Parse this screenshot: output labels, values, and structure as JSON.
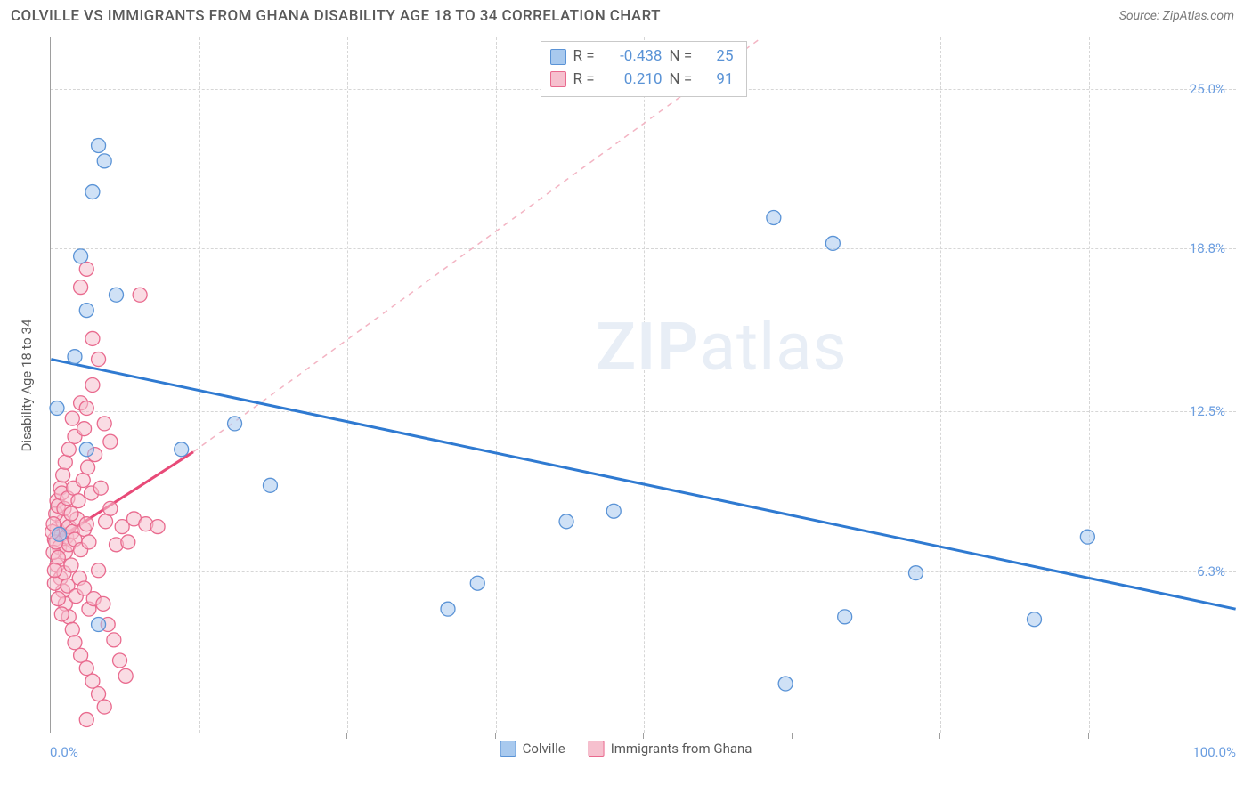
{
  "header": {
    "title": "COLVILLE VS IMMIGRANTS FROM GHANA DISABILITY AGE 18 TO 34 CORRELATION CHART",
    "source": "Source: ZipAtlas.com"
  },
  "axes": {
    "y_label": "Disability Age 18 to 34",
    "x_min": 0.0,
    "x_max": 100.0,
    "y_min": 0.0,
    "y_max": 27.0,
    "x_ticks": [
      12.5,
      25.0,
      37.5,
      50.0,
      62.5,
      75.0,
      87.5
    ],
    "y_ticks": [
      6.3,
      12.5,
      18.8,
      25.0
    ],
    "y_tick_labels": [
      "6.3%",
      "12.5%",
      "18.8%",
      "25.0%"
    ],
    "x_start_label": "0.0%",
    "x_end_label": "100.0%"
  },
  "colors": {
    "blue_fill": "#a8c9ee",
    "blue_stroke": "#5a93d6",
    "pink_fill": "#f6c0ce",
    "pink_stroke": "#e96a8e",
    "blue_line": "#2f7ad1",
    "pink_line": "#e84a78",
    "pink_dash": "#f3b4c3",
    "grid": "#d6d6d6",
    "axis": "#9e9e9e",
    "text": "#5a5a5a",
    "tick_text": "#6a9de0",
    "watermark": "#e8eef6"
  },
  "legend_stats": {
    "series": [
      {
        "swatch_fill": "#a8c9ee",
        "swatch_stroke": "#5a93d6",
        "r": "-0.438",
        "n": "25"
      },
      {
        "swatch_fill": "#f6c0ce",
        "swatch_stroke": "#e96a8e",
        "r": "0.210",
        "n": "91"
      }
    ]
  },
  "bottom_legend": {
    "items": [
      {
        "label": "Colville",
        "swatch_fill": "#a8c9ee",
        "swatch_stroke": "#5a93d6"
      },
      {
        "label": "Immigrants from Ghana",
        "swatch_fill": "#f6c0ce",
        "swatch_stroke": "#e96a8e"
      }
    ]
  },
  "watermark": {
    "zip": "ZIP",
    "atlas": "atlas"
  },
  "trend_lines": {
    "blue_solid": {
      "x1": 0,
      "y1": 14.5,
      "x2": 100,
      "y2": 4.8
    },
    "pink_solid": {
      "x1": 0.5,
      "y1": 7.5,
      "x2": 12.0,
      "y2": 10.9
    },
    "pink_dash": {
      "x1": 12.0,
      "y1": 10.9,
      "x2": 60.0,
      "y2": 27.0
    }
  },
  "points": {
    "blue": [
      {
        "x": 0.5,
        "y": 12.6
      },
      {
        "x": 3.0,
        "y": 11.0
      },
      {
        "x": 4.0,
        "y": 22.8
      },
      {
        "x": 4.5,
        "y": 22.2
      },
      {
        "x": 3.5,
        "y": 21.0
      },
      {
        "x": 2.5,
        "y": 18.5
      },
      {
        "x": 3.0,
        "y": 16.4
      },
      {
        "x": 5.5,
        "y": 17.0
      },
      {
        "x": 4.0,
        "y": 4.2
      },
      {
        "x": 0.7,
        "y": 7.7
      },
      {
        "x": 11.0,
        "y": 11.0
      },
      {
        "x": 15.5,
        "y": 12.0
      },
      {
        "x": 18.5,
        "y": 9.6
      },
      {
        "x": 33.5,
        "y": 4.8
      },
      {
        "x": 36.0,
        "y": 5.8
      },
      {
        "x": 43.5,
        "y": 8.2
      },
      {
        "x": 47.5,
        "y": 8.6
      },
      {
        "x": 61.0,
        "y": 20.0
      },
      {
        "x": 66.0,
        "y": 19.0
      },
      {
        "x": 62.0,
        "y": 1.9
      },
      {
        "x": 67.0,
        "y": 4.5
      },
      {
        "x": 73.0,
        "y": 6.2
      },
      {
        "x": 83.0,
        "y": 4.4
      },
      {
        "x": 87.5,
        "y": 7.6
      },
      {
        "x": 2.0,
        "y": 14.6
      }
    ],
    "pink": [
      {
        "x": 0.3,
        "y": 7.5
      },
      {
        "x": 0.5,
        "y": 7.9
      },
      {
        "x": 0.7,
        "y": 7.2
      },
      {
        "x": 0.9,
        "y": 7.7
      },
      {
        "x": 1.0,
        "y": 8.2
      },
      {
        "x": 1.2,
        "y": 7.0
      },
      {
        "x": 1.3,
        "y": 7.6
      },
      {
        "x": 1.5,
        "y": 8.0
      },
      {
        "x": 1.5,
        "y": 7.3
      },
      {
        "x": 1.8,
        "y": 7.8
      },
      {
        "x": 2.0,
        "y": 7.5
      },
      {
        "x": 2.2,
        "y": 8.3
      },
      {
        "x": 2.5,
        "y": 7.1
      },
      {
        "x": 2.8,
        "y": 7.9
      },
      {
        "x": 3.0,
        "y": 8.1
      },
      {
        "x": 3.2,
        "y": 7.4
      },
      {
        "x": 0.5,
        "y": 6.5
      },
      {
        "x": 0.8,
        "y": 6.0
      },
      {
        "x": 1.0,
        "y": 5.5
      },
      {
        "x": 1.2,
        "y": 5.0
      },
      {
        "x": 1.5,
        "y": 4.5
      },
      {
        "x": 1.8,
        "y": 4.0
      },
      {
        "x": 2.0,
        "y": 3.5
      },
      {
        "x": 2.5,
        "y": 3.0
      },
      {
        "x": 3.0,
        "y": 2.5
      },
      {
        "x": 3.5,
        "y": 2.0
      },
      {
        "x": 4.0,
        "y": 1.5
      },
      {
        "x": 4.5,
        "y": 1.0
      },
      {
        "x": 3.0,
        "y": 0.5
      },
      {
        "x": 0.5,
        "y": 9.0
      },
      {
        "x": 0.8,
        "y": 9.5
      },
      {
        "x": 1.0,
        "y": 10.0
      },
      {
        "x": 1.2,
        "y": 10.5
      },
      {
        "x": 1.5,
        "y": 11.0
      },
      {
        "x": 2.5,
        "y": 12.8
      },
      {
        "x": 3.0,
        "y": 12.6
      },
      {
        "x": 3.5,
        "y": 13.5
      },
      {
        "x": 4.0,
        "y": 14.5
      },
      {
        "x": 2.5,
        "y": 17.3
      },
      {
        "x": 3.0,
        "y": 18.0
      },
      {
        "x": 7.5,
        "y": 17.0
      },
      {
        "x": 0.4,
        "y": 8.5
      },
      {
        "x": 0.6,
        "y": 8.8
      },
      {
        "x": 0.9,
        "y": 9.3
      },
      {
        "x": 1.1,
        "y": 8.7
      },
      {
        "x": 1.4,
        "y": 9.1
      },
      {
        "x": 1.7,
        "y": 8.5
      },
      {
        "x": 1.9,
        "y": 9.5
      },
      {
        "x": 2.3,
        "y": 9.0
      },
      {
        "x": 2.7,
        "y": 9.8
      },
      {
        "x": 3.1,
        "y": 10.3
      },
      {
        "x": 3.4,
        "y": 9.3
      },
      {
        "x": 3.7,
        "y": 10.8
      },
      {
        "x": 4.2,
        "y": 9.5
      },
      {
        "x": 4.6,
        "y": 8.2
      },
      {
        "x": 5.0,
        "y": 8.7
      },
      {
        "x": 5.5,
        "y": 7.3
      },
      {
        "x": 6.0,
        "y": 8.0
      },
      {
        "x": 6.5,
        "y": 7.4
      },
      {
        "x": 7.0,
        "y": 8.3
      },
      {
        "x": 8.0,
        "y": 8.1
      },
      {
        "x": 9.0,
        "y": 8.0
      },
      {
        "x": 0.3,
        "y": 5.8
      },
      {
        "x": 0.6,
        "y": 5.2
      },
      {
        "x": 0.9,
        "y": 4.6
      },
      {
        "x": 1.1,
        "y": 6.2
      },
      {
        "x": 1.4,
        "y": 5.7
      },
      {
        "x": 1.7,
        "y": 6.5
      },
      {
        "x": 2.1,
        "y": 5.3
      },
      {
        "x": 2.4,
        "y": 6.0
      },
      {
        "x": 2.8,
        "y": 5.6
      },
      {
        "x": 3.2,
        "y": 4.8
      },
      {
        "x": 3.6,
        "y": 5.2
      },
      {
        "x": 4.0,
        "y": 6.3
      },
      {
        "x": 4.4,
        "y": 5.0
      },
      {
        "x": 4.8,
        "y": 4.2
      },
      {
        "x": 5.3,
        "y": 3.6
      },
      {
        "x": 5.8,
        "y": 2.8
      },
      {
        "x": 6.3,
        "y": 2.2
      },
      {
        "x": 3.5,
        "y": 15.3
      },
      {
        "x": 2.0,
        "y": 11.5
      },
      {
        "x": 2.8,
        "y": 11.8
      },
      {
        "x": 1.8,
        "y": 12.2
      },
      {
        "x": 4.5,
        "y": 12.0
      },
      {
        "x": 5.0,
        "y": 11.3
      },
      {
        "x": 0.2,
        "y": 7.0
      },
      {
        "x": 0.4,
        "y": 7.4
      },
      {
        "x": 0.6,
        "y": 6.8
      },
      {
        "x": 0.1,
        "y": 7.8
      },
      {
        "x": 0.2,
        "y": 8.1
      },
      {
        "x": 0.3,
        "y": 6.3
      }
    ]
  },
  "marker": {
    "radius": 8,
    "fill_opacity": 0.55
  }
}
